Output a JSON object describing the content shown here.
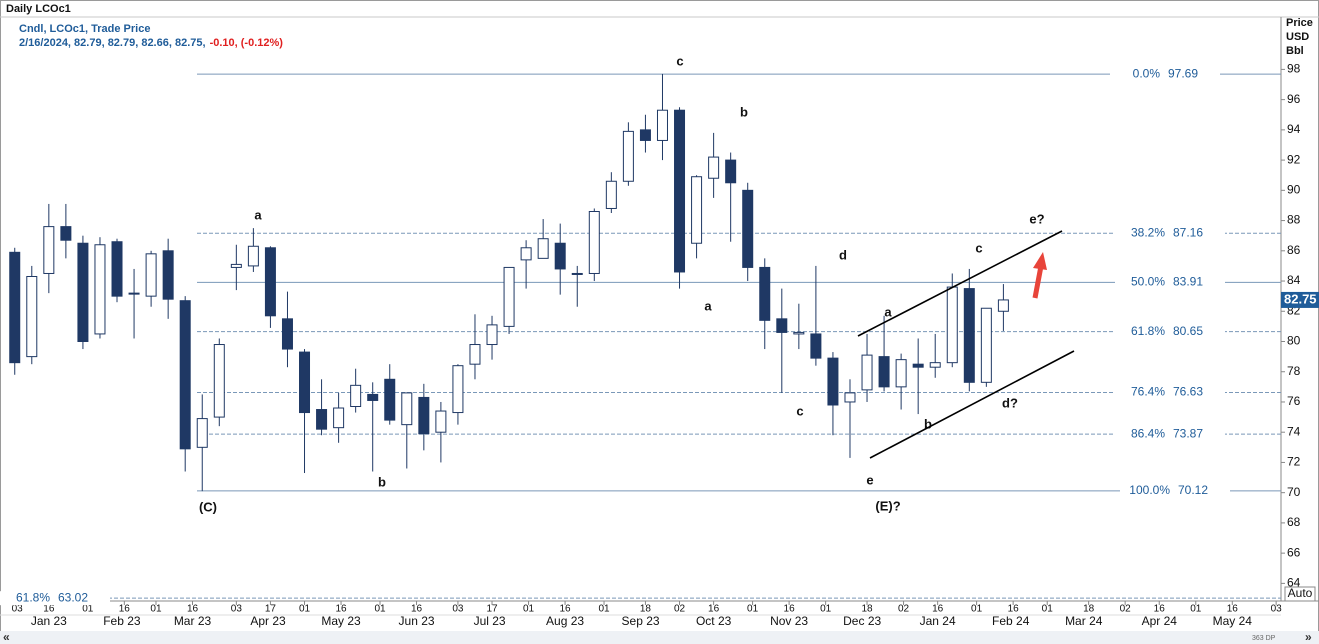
{
  "chart_data": {
    "type": "candlestick",
    "title": "Daily LCOc1",
    "study": "Cndl, LCOc1, Trade Price",
    "quote": "2/16/2024, 82.79, 82.79, 82.66, 82.75,",
    "change": "-0.10, (-0.12%)",
    "y_label": [
      "Price",
      "USD",
      "Bbl"
    ],
    "auto_button": "Auto",
    "scroll_left": "«",
    "scroll_right": "»",
    "data_points": "363 DP",
    "last_price": 82.75,
    "color": "#1f3864",
    "ylim": [
      62.9,
      101.4
    ],
    "yticks": [
      64,
      66,
      68,
      70,
      72,
      74,
      76,
      78,
      80,
      82,
      84,
      86,
      88,
      90,
      92,
      94,
      96,
      98
    ],
    "xlim": [
      "2022-12-29",
      "2024-06-05"
    ],
    "xticks": [
      {
        "value": "2023-01-03",
        "label": "03"
      },
      {
        "value": "2023-01-16",
        "label": "16"
      },
      {
        "value": "2023-02-01",
        "label": "01"
      },
      {
        "value": "2023-02-16",
        "label": "16"
      },
      {
        "value": "2023-03-01",
        "label": "01"
      },
      {
        "value": "2023-03-16",
        "label": "16"
      },
      {
        "value": "2023-04-03",
        "label": "03"
      },
      {
        "value": "2023-04-17",
        "label": "17"
      },
      {
        "value": "2023-05-01",
        "label": "01"
      },
      {
        "value": "2023-05-16",
        "label": "16"
      },
      {
        "value": "2023-06-01",
        "label": "01"
      },
      {
        "value": "2023-06-16",
        "label": "16"
      },
      {
        "value": "2023-07-03",
        "label": "03"
      },
      {
        "value": "2023-07-17",
        "label": "17"
      },
      {
        "value": "2023-08-01",
        "label": "01"
      },
      {
        "value": "2023-08-16",
        "label": "16"
      },
      {
        "value": "2023-09-01",
        "label": "01"
      },
      {
        "value": "2023-09-18",
        "label": "18"
      },
      {
        "value": "2023-10-02",
        "label": "02"
      },
      {
        "value": "2023-10-16",
        "label": "16"
      },
      {
        "value": "2023-11-01",
        "label": "01"
      },
      {
        "value": "2023-11-16",
        "label": "16"
      },
      {
        "value": "2023-12-01",
        "label": "01"
      },
      {
        "value": "2023-12-18",
        "label": "18"
      },
      {
        "value": "2024-01-02",
        "label": "02"
      },
      {
        "value": "2024-01-16",
        "label": "16"
      },
      {
        "value": "2024-02-01",
        "label": "01"
      },
      {
        "value": "2024-02-16",
        "label": "16"
      },
      {
        "value": "2024-03-01",
        "label": "01"
      },
      {
        "value": "2024-03-18",
        "label": "18"
      },
      {
        "value": "2024-04-02",
        "label": "02"
      },
      {
        "value": "2024-04-16",
        "label": "16"
      },
      {
        "value": "2024-05-01",
        "label": "01"
      },
      {
        "value": "2024-05-16",
        "label": "16"
      },
      {
        "value": "2024-06-03",
        "label": "03"
      }
    ],
    "months": [
      {
        "value": "2023-01-16",
        "label": "Jan 23"
      },
      {
        "value": "2023-02-15",
        "label": "Feb 23"
      },
      {
        "value": "2023-03-16",
        "label": "Mar 23"
      },
      {
        "value": "2023-04-16",
        "label": "Apr 23"
      },
      {
        "value": "2023-05-16",
        "label": "May 23"
      },
      {
        "value": "2023-06-16",
        "label": "Jun 23"
      },
      {
        "value": "2023-07-16",
        "label": "Jul 23"
      },
      {
        "value": "2023-08-16",
        "label": "Aug 23"
      },
      {
        "value": "2023-09-16",
        "label": "Sep 23"
      },
      {
        "value": "2023-10-16",
        "label": "Oct 23"
      },
      {
        "value": "2023-11-16",
        "label": "Nov 23"
      },
      {
        "value": "2023-12-16",
        "label": "Dec 23"
      },
      {
        "value": "2024-01-16",
        "label": "Jan 24"
      },
      {
        "value": "2024-02-15",
        "label": "Feb 24"
      },
      {
        "value": "2024-03-16",
        "label": "Mar 24"
      },
      {
        "value": "2024-04-16",
        "label": "Apr 24"
      },
      {
        "value": "2024-05-16",
        "label": "May 24"
      }
    ],
    "x": [
      "2023-01-02",
      "2023-01-09",
      "2023-01-16",
      "2023-01-23",
      "2023-01-30",
      "2023-02-06",
      "2023-02-13",
      "2023-02-20",
      "2023-02-27",
      "2023-03-06",
      "2023-03-13",
      "2023-03-20",
      "2023-03-27",
      "2023-04-03",
      "2023-04-10",
      "2023-04-17",
      "2023-04-24",
      "2023-05-01",
      "2023-05-08",
      "2023-05-15",
      "2023-05-22",
      "2023-05-29",
      "2023-06-05",
      "2023-06-12",
      "2023-06-19",
      "2023-06-26",
      "2023-07-03",
      "2023-07-10",
      "2023-07-17",
      "2023-07-24",
      "2023-07-31",
      "2023-08-07",
      "2023-08-14",
      "2023-08-21",
      "2023-08-28",
      "2023-09-04",
      "2023-09-11",
      "2023-09-18",
      "2023-09-25",
      "2023-10-02",
      "2023-10-09",
      "2023-10-16",
      "2023-10-23",
      "2023-10-30",
      "2023-11-06",
      "2023-11-13",
      "2023-11-20",
      "2023-11-27",
      "2023-12-04",
      "2023-12-11",
      "2023-12-18",
      "2023-12-25",
      "2024-01-01",
      "2024-01-08",
      "2024-01-15",
      "2024-01-22",
      "2024-01-29",
      "2024-02-05",
      "2024-02-12"
    ],
    "open": [
      85.9,
      79,
      84.5,
      87.6,
      86.5,
      80.5,
      86.6,
      83.2,
      83,
      86,
      82.7,
      73,
      75,
      84.9,
      85,
      86.2,
      81.5,
      79.3,
      75.5,
      74.3,
      75.7,
      76.5,
      77.5,
      74.5,
      76.3,
      74,
      75.3,
      78.5,
      79.8,
      81,
      85.4,
      85.5,
      86.5,
      84.5,
      84.5,
      88.8,
      90.6,
      94,
      93.3,
      95.3,
      86.5,
      90.8,
      92,
      90,
      84.9,
      81.5,
      80.5,
      80.5,
      78.9,
      76,
      76.8,
      79,
      77,
      78.5,
      78.3,
      78.6,
      83.5,
      77.3,
      82
    ],
    "high": [
      86.2,
      85,
      89.1,
      89.1,
      87,
      86.9,
      86.8,
      84.8,
      86,
      86.8,
      83,
      76.5,
      80.2,
      86.4,
      87.5,
      86.3,
      83.3,
      79.5,
      77.5,
      76.6,
      78.2,
      77.3,
      78.5,
      76.6,
      77.2,
      76,
      78.5,
      81.8,
      81.7,
      84.9,
      86.7,
      88.1,
      87.8,
      85,
      88.8,
      91.2,
      94.5,
      95,
      97.7,
      95.5,
      91,
      93.8,
      92.5,
      90.5,
      85.5,
      83.5,
      82.5,
      85,
      79.3,
      77.5,
      80.5,
      81.7,
      79.2,
      80.2,
      80.5,
      84.5,
      84.8,
      82.2,
      83.8
    ],
    "low": [
      77.8,
      78.5,
      83.2,
      85.5,
      79.5,
      80.2,
      82.6,
      80.2,
      82.3,
      81.5,
      71.4,
      70.1,
      74.4,
      83.4,
      84.6,
      80.9,
      78.3,
      71.3,
      73.8,
      73.3,
      75.3,
      71.4,
      74.5,
      71.6,
      72.8,
      72,
      74.5,
      77.5,
      78.8,
      80.5,
      83.5,
      85.5,
      83.1,
      82.3,
      84,
      88.5,
      90.3,
      92.5,
      92,
      83.5,
      85.5,
      89.5,
      86.6,
      84,
      79.5,
      76.6,
      79.5,
      78.4,
      73.8,
      72.3,
      76,
      76.7,
      75.5,
      75.2,
      77.6,
      78.3,
      76.7,
      77,
      80.7
    ],
    "close": [
      78.6,
      84.3,
      87.6,
      86.7,
      80,
      86.4,
      83,
      83.2,
      85.8,
      82.8,
      72.9,
      74.9,
      79.8,
      85.1,
      86.3,
      81.7,
      79.5,
      75.3,
      74.2,
      75.6,
      77.1,
      76.1,
      74.8,
      76.6,
      73.9,
      75.4,
      78.4,
      79.8,
      81.1,
      84.9,
      86.2,
      86.8,
      84.8,
      84.5,
      88.6,
      90.6,
      93.9,
      93.3,
      95.3,
      84.6,
      90.9,
      92.2,
      90.5,
      84.9,
      81.4,
      80.6,
      80.6,
      78.9,
      75.8,
      76.6,
      79.1,
      77,
      78.8,
      78.3,
      78.6,
      83.6,
      77.3,
      82.2,
      82.75
    ],
    "fib_levels": [
      {
        "pct": {
          "value": 0,
          "label": "0.0%"
        },
        "price": 97.69
      },
      {
        "pct": {
          "value": 38.2,
          "label": "38.2%"
        },
        "price": 87.16
      },
      {
        "pct": {
          "value": 50,
          "label": "50.0%"
        },
        "price": 83.91
      },
      {
        "pct": {
          "value": 61.8,
          "label": "61.8%"
        },
        "price": 80.65
      },
      {
        "pct": {
          "value": 76.4,
          "label": "76.4%"
        },
        "price": 76.63
      },
      {
        "pct": {
          "value": 86.4,
          "label": "86.4%"
        },
        "price": 73.87
      },
      {
        "pct": {
          "value": 100,
          "label": "100.0%"
        },
        "price": 70.12
      },
      {
        "pct": {
          "value": 61.8,
          "label": "61.8%"
        },
        "price": 63.02
      }
    ],
    "annotations": [
      "c",
      "b",
      "a",
      "a",
      "d",
      "c",
      "b",
      "e?",
      "c",
      "a",
      "b",
      "d?",
      "e",
      "(C)",
      "(E)?"
    ]
  }
}
